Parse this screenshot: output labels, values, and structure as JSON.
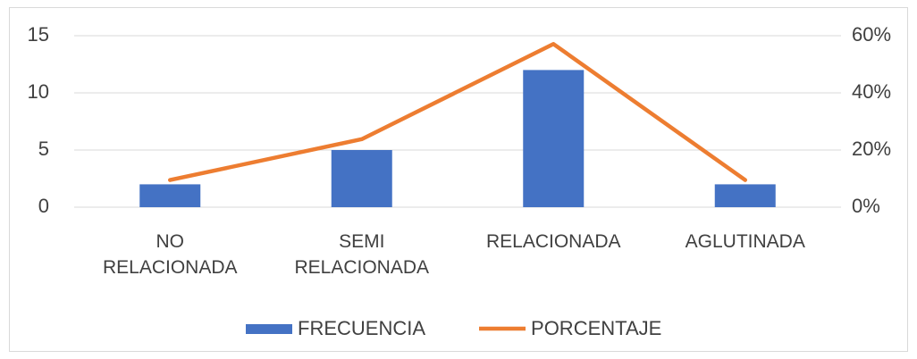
{
  "chart_data": {
    "type": "bar_line",
    "categories": [
      "NO RELACIONADA",
      "SEMI RELACIONADA",
      "RELACIONADA",
      "AGLUTINADA"
    ],
    "series": [
      {
        "name": "FRECUENCIA",
        "color": "#4472c4",
        "type": "bar",
        "values": [
          2,
          5,
          12,
          2
        ]
      },
      {
        "name": "PORCENTAJE",
        "color": "#ed7d31",
        "type": "line",
        "axis": "y2",
        "values": [
          9.5,
          23.8,
          57.1,
          9.5
        ]
      }
    ],
    "ylim": [
      0,
      15
    ],
    "yticks": [
      0,
      5,
      10,
      15
    ],
    "y2lim": [
      0,
      60
    ],
    "y2ticks": [
      {
        "value": 0,
        "label": "0%"
      },
      {
        "value": 20,
        "label": "20%"
      },
      {
        "value": 40,
        "label": "40%"
      },
      {
        "value": 60,
        "label": "60%"
      }
    ],
    "grid": true,
    "legend": "bottom"
  }
}
